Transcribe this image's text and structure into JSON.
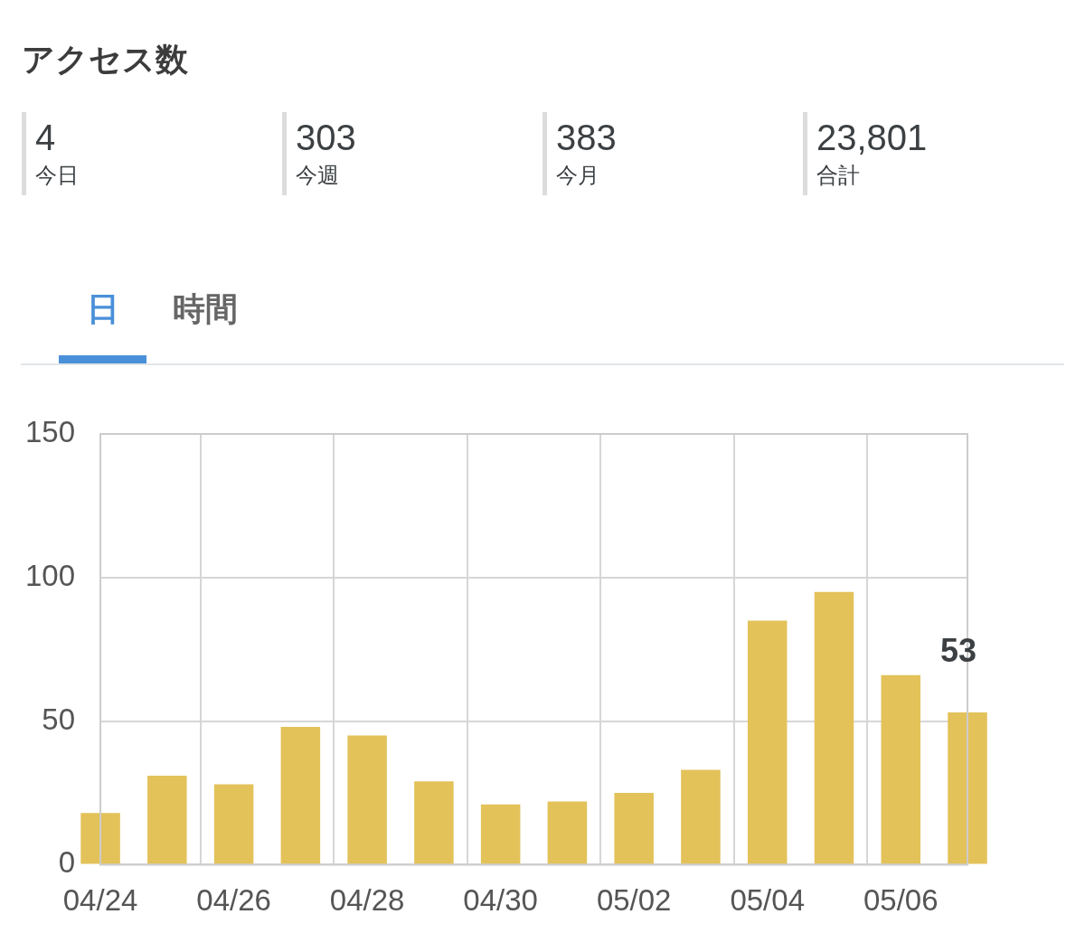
{
  "chart_data": [
    {
      "type": "other",
      "title": "アクセス数",
      "annotations": [
        "4",
        "今日",
        "303",
        "今週",
        "383",
        "今月",
        "23,801",
        "合計"
      ]
    },
    {
      "type": "bar",
      "annotations": [
        "日",
        "時間"
      ],
      "categories": [
        "04/24",
        null,
        "04/26",
        null,
        "04/28",
        null,
        "04/30",
        null,
        "05/02",
        null,
        "05/04",
        null,
        "05/06",
        null
      ],
      "values": [
        18,
        31,
        28,
        48,
        45,
        29,
        21,
        22,
        25,
        33,
        85,
        95,
        66,
        53
      ],
      "color": "#e3c25a",
      "value_labels": [
        null,
        null,
        null,
        null,
        null,
        null,
        null,
        null,
        null,
        null,
        null,
        null,
        null,
        "53"
      ],
      "ylim": [
        0,
        150
      ],
      "yticks": [
        0,
        50,
        100,
        150
      ],
      "grid": true,
      "legend": false
    }
  ]
}
